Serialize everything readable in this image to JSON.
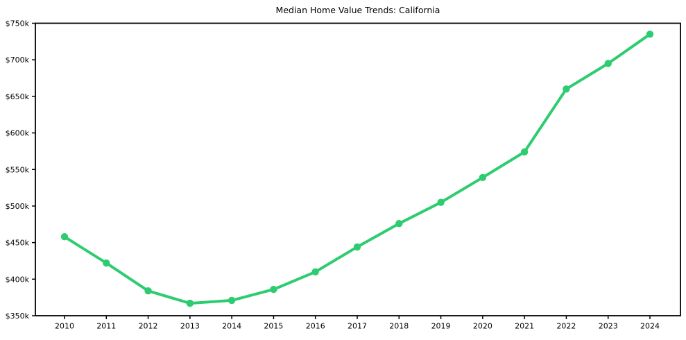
{
  "figure": {
    "background": "#ffffff"
  },
  "chart_data": {
    "type": "line",
    "title": "Median Home Value Trends: California",
    "x_tick_labels": [
      "2010",
      "2011",
      "2012",
      "2013",
      "2014",
      "2015",
      "2016",
      "2017",
      "2018",
      "2019",
      "2020",
      "2021",
      "2022",
      "2023",
      "2024"
    ],
    "values": [
      458,
      422,
      384,
      367,
      371,
      386,
      410,
      444,
      476,
      505,
      539,
      574,
      660,
      695,
      735
    ],
    "values_unit": "thousands of dollars",
    "y_tick_labels": [
      "$350k",
      "$400k",
      "$450k",
      "$500k",
      "$550k",
      "$600k",
      "$650k",
      "$700k",
      "$750k"
    ],
    "ylim": [
      350,
      750
    ],
    "xlabel": "",
    "ylabel": "",
    "grid": false,
    "legend_position": "none",
    "marker": "circle",
    "line_color": "#2ecc71",
    "axis_color": "#000000",
    "text_color": "#000000"
  }
}
